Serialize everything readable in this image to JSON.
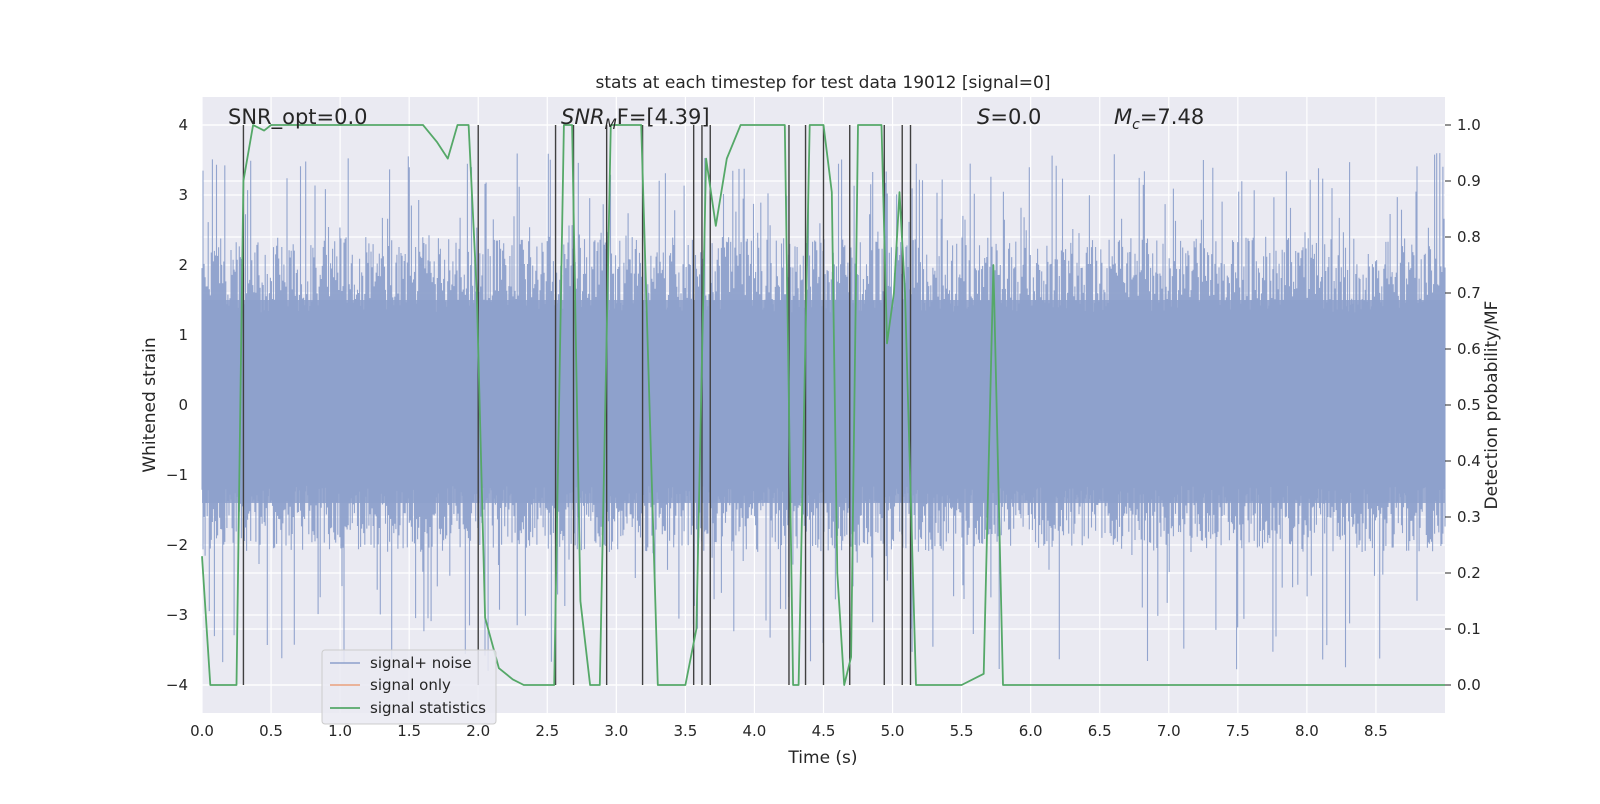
{
  "chart_data": {
    "type": "line",
    "title": "stats at each timestep for test data 19012 [signal=0]",
    "xlabel": "Time (s)",
    "ylabel_left": "Whitened strain",
    "ylabel_right": "Detection probability/MF",
    "xlim": [
      0.0,
      9.0
    ],
    "ylim_left": [
      -4.4,
      4.4
    ],
    "ylim_right": [
      -0.05,
      1.05
    ],
    "xticks": [
      0.0,
      0.5,
      1.0,
      1.5,
      2.0,
      2.5,
      3.0,
      3.5,
      4.0,
      4.5,
      5.0,
      5.5,
      6.0,
      6.5,
      7.0,
      7.5,
      8.0,
      8.5
    ],
    "xtick_labels": [
      "0.0",
      "0.5",
      "1.0",
      "1.5",
      "2.0",
      "2.5",
      "3.0",
      "3.5",
      "4.0",
      "4.5",
      "5.0",
      "5.5",
      "6.0",
      "6.5",
      "7.0",
      "7.5",
      "8.0",
      "8.5"
    ],
    "yticks_left": [
      -4,
      -3,
      -2,
      -1,
      0,
      1,
      2,
      3,
      4
    ],
    "ytick_labels_left": [
      "−4",
      "−3",
      "−2",
      "−1",
      "0",
      "1",
      "2",
      "3",
      "4"
    ],
    "yticks_right": [
      0.0,
      0.1,
      0.2,
      0.3,
      0.4,
      0.5,
      0.6,
      0.7,
      0.8,
      0.9,
      1.0
    ],
    "ytick_labels_right": [
      "0.0",
      "0.1",
      "0.2",
      "0.3",
      "0.4",
      "0.5",
      "0.6",
      "0.7",
      "0.8",
      "0.9",
      "1.0"
    ],
    "grid": true,
    "legend_placement": "lower-left",
    "legend": [
      {
        "label": "signal+ noise",
        "color": "#8da0cb"
      },
      {
        "label": "signal only",
        "color": "#e9a07c"
      },
      {
        "label": "signal statistics",
        "color": "#55a868"
      }
    ],
    "annotations": {
      "snr_opt": "SNR_opt=0.0",
      "snr_mf_sym": "SNR",
      "snr_mf_sub": "M",
      "snr_mf_rest": "F=[4.39]",
      "s_sym": "S",
      "s_rest": "=0.0",
      "mc_sym": "M",
      "mc_sub": "c",
      "mc_rest": "=7.48"
    },
    "noise_series": {
      "name": "signal+ noise",
      "color": "#8da0cb",
      "envelope_upper_typical": 2.4,
      "envelope_lower_typical": -2.1,
      "max_value": 3.6,
      "min_value": -3.8
    },
    "statistics_series": {
      "name": "signal statistics",
      "color": "#55a868",
      "x": [
        0.0,
        0.06,
        0.1,
        0.25,
        0.3,
        0.37,
        0.45,
        0.5,
        0.6,
        1.0,
        1.6,
        1.7,
        1.78,
        1.85,
        1.93,
        1.99,
        2.05,
        2.15,
        2.25,
        2.33,
        2.42,
        2.55,
        2.62,
        2.68,
        2.74,
        2.81,
        2.88,
        2.96,
        3.03,
        3.1,
        3.18,
        3.3,
        3.36,
        3.43,
        3.5,
        3.58,
        3.65,
        3.72,
        3.8,
        3.9,
        4.1,
        4.22,
        4.28,
        4.32,
        4.4,
        4.45,
        4.5,
        4.56,
        4.6,
        4.65,
        4.7,
        4.75,
        4.8,
        4.87,
        4.92,
        4.96,
        5.01,
        5.05,
        5.09,
        5.13,
        5.17,
        5.22,
        5.3,
        5.5,
        5.66,
        5.73,
        5.8,
        5.88,
        6.0,
        6.9,
        7.0,
        9.0
      ],
      "y": [
        0.23,
        0.0,
        0.0,
        0.0,
        0.9,
        1.0,
        0.99,
        1.0,
        1.0,
        1.0,
        1.0,
        0.97,
        0.94,
        1.0,
        1.0,
        0.7,
        0.12,
        0.03,
        0.01,
        0.0,
        0.0,
        0.0,
        1.0,
        1.0,
        0.15,
        0.0,
        0.0,
        1.0,
        1.0,
        1.0,
        1.0,
        0.0,
        0.0,
        0.0,
        0.0,
        0.1,
        0.94,
        0.82,
        0.94,
        1.0,
        1.0,
        1.0,
        0.0,
        0.0,
        1.0,
        1.0,
        1.0,
        0.88,
        0.2,
        0.0,
        0.05,
        1.0,
        1.0,
        1.0,
        1.0,
        0.61,
        0.7,
        0.88,
        0.7,
        0.35,
        0.0,
        0.0,
        0.0,
        0.0,
        0.02,
        0.75,
        0.0,
        0.0,
        0.0,
        0.0,
        0.0,
        0.0
      ]
    },
    "detection_markers": {
      "color": "#404040",
      "x": [
        0.3,
        2.0,
        2.56,
        2.69,
        2.93,
        3.19,
        3.56,
        3.62,
        3.68,
        4.25,
        4.37,
        4.5,
        4.69,
        4.94,
        5.07,
        5.13
      ]
    }
  }
}
